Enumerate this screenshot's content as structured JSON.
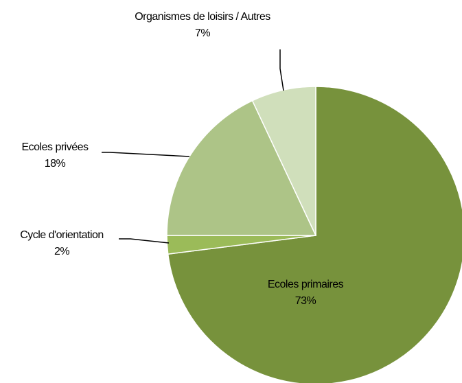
{
  "chart_data": {
    "type": "pie",
    "categories": [
      "Ecoles primaires",
      "Cycle d'orientation",
      "Ecoles privées",
      "Organismes de loisirs / Autres"
    ],
    "values": [
      73,
      2,
      18,
      7
    ],
    "value_labels": [
      "73%",
      "2%",
      "18%",
      "7%"
    ],
    "colors": [
      "#77923c",
      "#9bbb59",
      "#adc487",
      "#d0dfbb"
    ]
  }
}
